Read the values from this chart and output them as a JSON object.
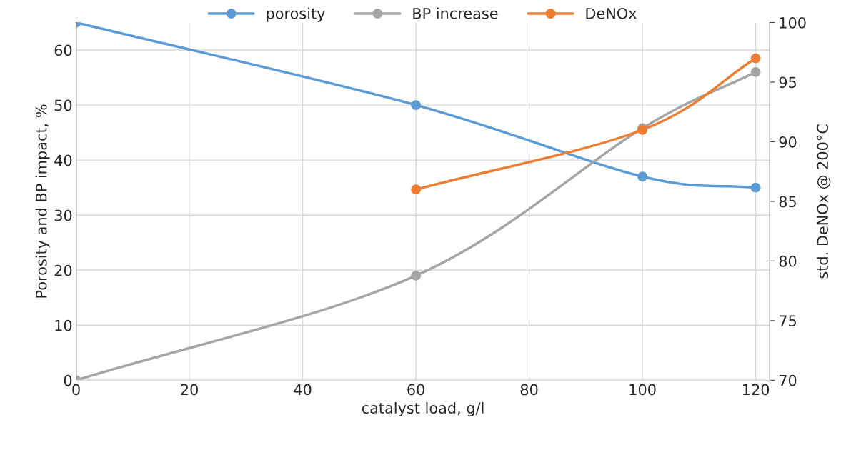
{
  "chart_data": {
    "type": "line",
    "xlabel": "catalyst load, g/l",
    "ylabel": "Porosity and BP impact, %",
    "y2label": "std. DeNOx @ 200°C",
    "xlim": [
      0,
      122.5
    ],
    "xticks": [
      0,
      20,
      40,
      60,
      80,
      100,
      120
    ],
    "ylim": [
      0,
      65
    ],
    "yticks": [
      0,
      10,
      20,
      30,
      40,
      50,
      60
    ],
    "y2lim": [
      70,
      100
    ],
    "y2ticks": [
      70,
      75,
      80,
      85,
      90,
      95,
      100
    ],
    "grid": true,
    "legend": "top",
    "marker": "circle",
    "line_style": "solid",
    "series": [
      {
        "name": "porosity",
        "color": "#5b9bd5",
        "x": [
          0,
          60,
          100,
          120
        ],
        "values": [
          65,
          50,
          37,
          35
        ]
      },
      {
        "name": "BP increase",
        "color": "#a5a5a5",
        "x": [
          0,
          60,
          100,
          120
        ],
        "values": [
          0,
          19,
          45.8,
          56
        ]
      },
      {
        "name": "DeNOx",
        "color": "#ed7d31",
        "x": [
          60,
          100,
          120
        ],
        "values": [
          86,
          91,
          97
        ],
        "axis": "y2"
      }
    ]
  }
}
